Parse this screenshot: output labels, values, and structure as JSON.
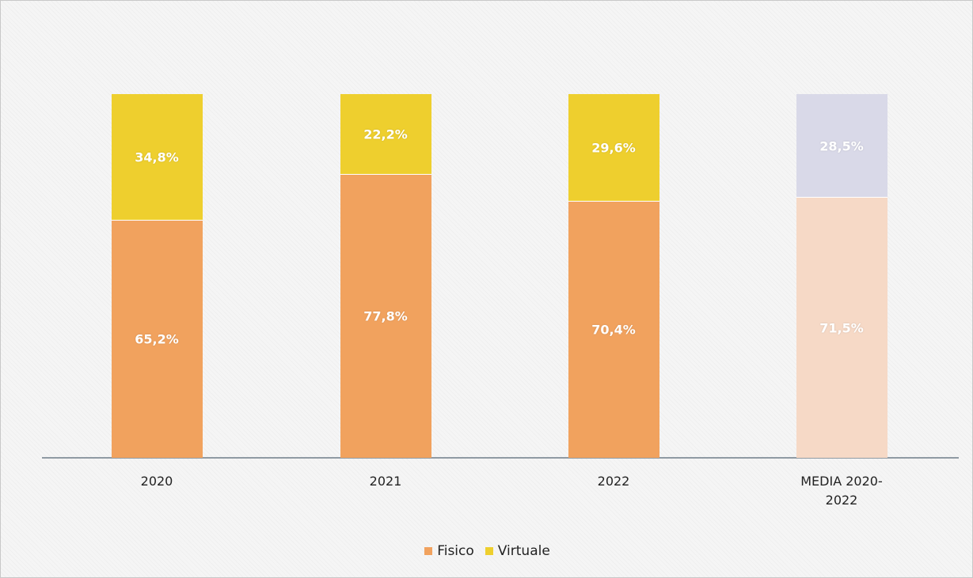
{
  "chart_data": {
    "type": "stacked_bar",
    "categories": [
      "2020",
      "2021",
      "2022",
      "MEDIA 2020-2022"
    ],
    "series": [
      {
        "name": "Fisico",
        "color": "#f1a25e",
        "colors": [
          "#f1a25e",
          "#f1a25e",
          "#f1a25e",
          "#f6d9c6"
        ],
        "values": [
          65.2,
          77.8,
          70.4,
          71.5
        ],
        "value_labels": [
          "65,2%",
          "77,8%",
          "70,4%",
          "71,5%"
        ]
      },
      {
        "name": "Virtuale",
        "color": "#eecf2e",
        "colors": [
          "#eecf2e",
          "#eecf2e",
          "#eecf2e",
          "#d9d9e8"
        ],
        "values": [
          34.8,
          22.2,
          29.6,
          28.5
        ],
        "value_labels": [
          "34,8%",
          "22,2%",
          "29,6%",
          "28,5%"
        ]
      }
    ],
    "ylim": [
      0,
      100
    ]
  }
}
